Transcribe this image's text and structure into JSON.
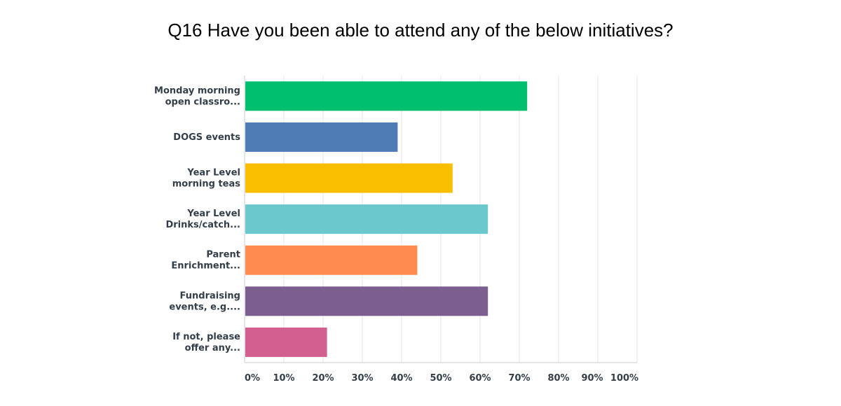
{
  "chart_data": {
    "type": "bar",
    "orientation": "horizontal",
    "title": "Q16 Have you been able to attend any of the below initiatives?",
    "categories": [
      [
        "Monday morning",
        "open classro..."
      ],
      [
        "DOGS events"
      ],
      [
        "Year Level",
        "morning teas"
      ],
      [
        "Year Level",
        "Drinks/catch..."
      ],
      [
        "Parent",
        "Enrichment..."
      ],
      [
        "Fundraising",
        "events, e.g...."
      ],
      [
        "If not, please",
        "offer any..."
      ]
    ],
    "values": [
      72,
      39,
      53,
      62,
      44,
      62,
      21
    ],
    "colors": [
      "#00bf6f",
      "#507cb6",
      "#f9be00",
      "#6bc8cd",
      "#ff8b4f",
      "#7d5e90",
      "#d25f90"
    ],
    "xlim": [
      0,
      100
    ],
    "xticks": [
      0,
      10,
      20,
      30,
      40,
      50,
      60,
      70,
      80,
      90,
      100
    ],
    "xtick_labels": [
      "0%",
      "10%",
      "20%",
      "30%",
      "40%",
      "50%",
      "60%",
      "70%",
      "80%",
      "90%",
      "100%"
    ],
    "grid": true,
    "legend": "none"
  }
}
